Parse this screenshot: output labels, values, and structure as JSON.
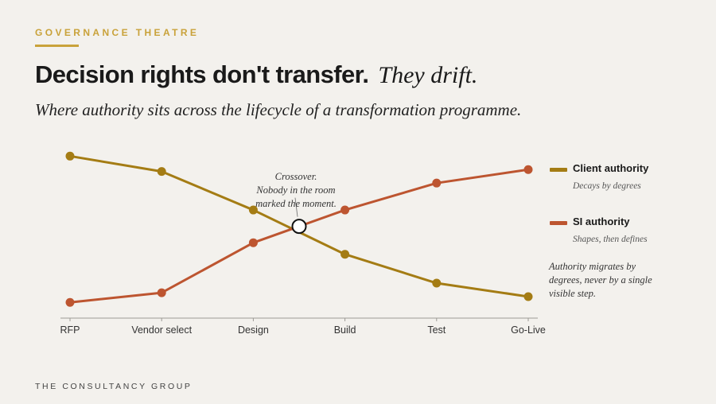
{
  "header": {
    "eyebrow": "GOVERNANCE THEATRE",
    "headline_bold": "Decision rights don't transfer.",
    "headline_italic": "They drift.",
    "subtitle": "Where authority sits across the lifecycle of a transformation programme."
  },
  "footer": {
    "text": "THE CONSULTANCY GROUP"
  },
  "colors": {
    "client": "#a47c14",
    "si": "#bd5530",
    "eyebrow": "#c9a23a"
  },
  "chart_data": {
    "type": "line",
    "categories": [
      "RFP",
      "Vendor select",
      "Design",
      "Build",
      "Test",
      "Go-Live"
    ],
    "ylim": [
      0,
      100
    ],
    "grid": false,
    "legend_position": "right",
    "series": [
      {
        "name": "Client authority",
        "description": "Decays by degrees",
        "values": [
          85,
          77,
          57,
          34,
          19,
          12
        ]
      },
      {
        "name": "SI authority",
        "description": "Shapes, then defines",
        "values": [
          9,
          14,
          40,
          57,
          71,
          78
        ]
      }
    ],
    "crossover": {
      "x": 2.5,
      "y": 48.5,
      "label": [
        "Crossover.",
        "Nobody in the room",
        "marked the moment."
      ]
    },
    "annotation": [
      "Authority migrates by",
      "degrees, never by a single",
      "visible step."
    ]
  }
}
